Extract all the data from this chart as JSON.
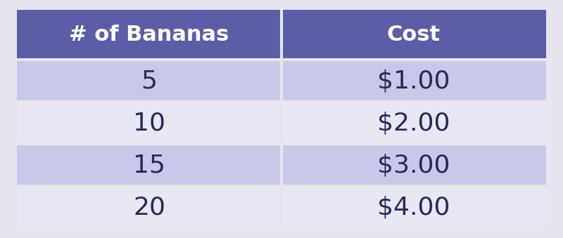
{
  "col_headers": [
    "# of Bananas",
    "Cost"
  ],
  "rows": [
    [
      "5",
      "$1.00"
    ],
    [
      "10",
      "$2.00"
    ],
    [
      "15",
      "$3.00"
    ],
    [
      "20",
      "$4.00"
    ]
  ],
  "header_bg_color": "#5B5EA6",
  "header_text_color": "#FFFFFF",
  "row_odd_color": "#C8C8E8",
  "row_even_color": "#E8E8F4",
  "outer_bg_color": "#E8E4F0",
  "cell_text_color": "#2a2a5a",
  "header_fontsize": 22,
  "cell_fontsize": 26,
  "fig_width": 8.0,
  "fig_height": 3.39
}
